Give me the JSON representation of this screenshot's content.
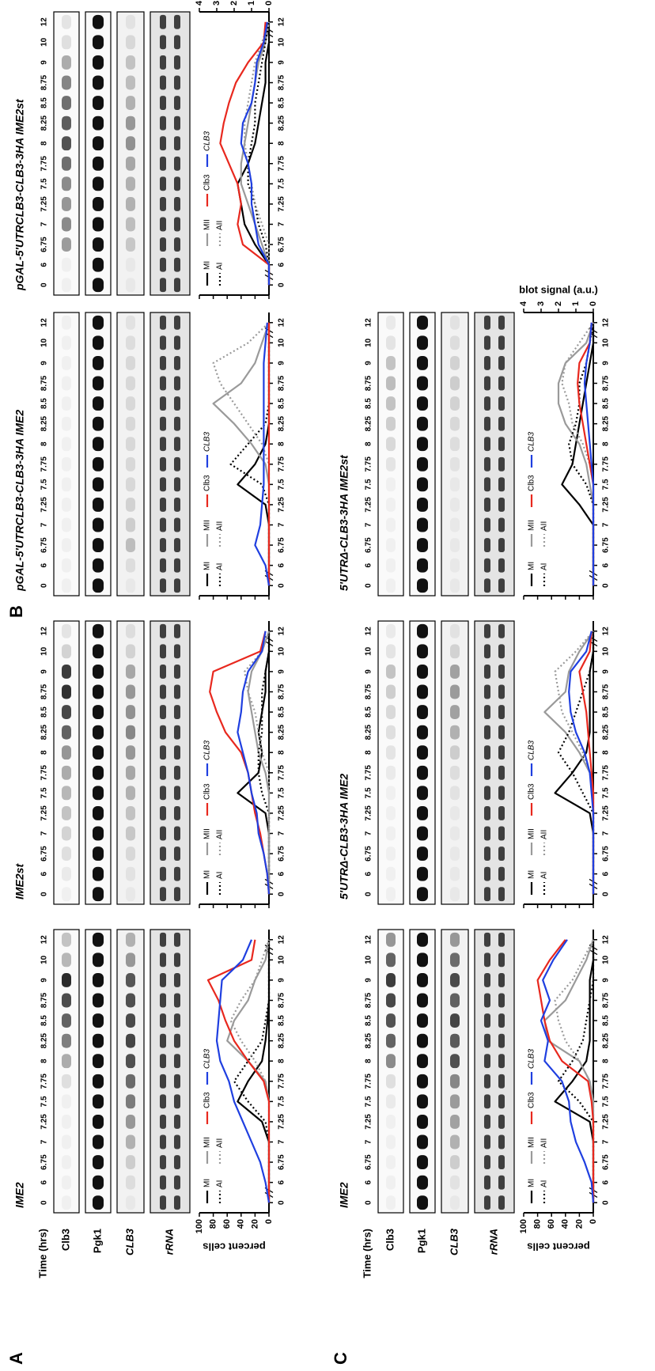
{
  "panel_labels": [
    "A",
    "B",
    "C"
  ],
  "row_header": {
    "time_label": "Time (hrs)",
    "blots": [
      "Clb3",
      "Pgk1",
      "CLB3",
      "rRNA"
    ]
  },
  "chart_data": [
    {
      "type": "line",
      "title": "IME2",
      "ylabel": "percent cells",
      "categories": [
        "0",
        "6",
        "6.75",
        "7",
        "7.25",
        "7.5",
        "7.75",
        "8",
        "8.25",
        "8.5",
        "8.75",
        "9",
        "10",
        "12"
      ],
      "ylim": [
        0,
        100
      ],
      "yticks": [
        0,
        20,
        40,
        60,
        80,
        100
      ],
      "y2lim": [
        0,
        4
      ],
      "series": [
        {
          "name": "MI",
          "color": "#000000",
          "line_style": "solid",
          "values": [
            0,
            0,
            0,
            0,
            10,
            45,
            30,
            10,
            5,
            2,
            0,
            0,
            0,
            0
          ]
        },
        {
          "name": "MII",
          "color": "#9a9a9a",
          "line_style": "solid",
          "values": [
            0,
            0,
            0,
            0,
            0,
            0,
            5,
            30,
            60,
            50,
            30,
            20,
            5,
            0
          ]
        },
        {
          "name": "AI",
          "color": "#000000",
          "line_style": "dotted",
          "values": [
            0,
            0,
            0,
            0,
            5,
            30,
            50,
            30,
            10,
            5,
            0,
            0,
            0,
            0
          ]
        },
        {
          "name": "AII",
          "color": "#9a9a9a",
          "line_style": "dotted",
          "values": [
            0,
            0,
            0,
            0,
            0,
            0,
            5,
            20,
            40,
            55,
            40,
            20,
            10,
            0
          ]
        },
        {
          "name": "Clb3",
          "color": "#e8281e",
          "line_style": "solid",
          "axis": "y2",
          "values": [
            0,
            0,
            0,
            0,
            0,
            0,
            0.3,
            1.2,
            2,
            2.5,
            2.9,
            3.5,
            1,
            0.8
          ]
        },
        {
          "name": "CLB3",
          "color": "#1f3fe0",
          "line_style": "solid",
          "axis": "y2",
          "values": [
            0,
            0.2,
            0.5,
            1,
            1.5,
            2,
            2.3,
            2.8,
            3,
            2.9,
            2.8,
            2.7,
            1.5,
            1
          ]
        }
      ]
    },
    {
      "type": "line",
      "title": "IME2st",
      "categories": [
        "0",
        "6",
        "6.75",
        "7",
        "7.25",
        "7.5",
        "7.75",
        "8",
        "8.25",
        "8.5",
        "8.75",
        "9",
        "10",
        "12"
      ],
      "ylim": [
        0,
        100
      ],
      "yticks": [
        0,
        20,
        40,
        60,
        80,
        100
      ],
      "y2lim": [
        0,
        4
      ],
      "series": [
        {
          "name": "MI",
          "color": "#000000",
          "line_style": "solid",
          "values": [
            0,
            0,
            0,
            0,
            5,
            45,
            15,
            10,
            15,
            10,
            5,
            5,
            0,
            0
          ]
        },
        {
          "name": "MII",
          "color": "#9a9a9a",
          "line_style": "solid",
          "values": [
            0,
            0,
            0,
            0,
            0,
            0,
            5,
            15,
            20,
            25,
            30,
            25,
            10,
            0
          ]
        },
        {
          "name": "AI",
          "color": "#000000",
          "line_style": "dotted",
          "values": [
            0,
            0,
            0,
            0,
            0,
            10,
            15,
            15,
            10,
            10,
            10,
            5,
            0,
            0
          ]
        },
        {
          "name": "AII",
          "color": "#9a9a9a",
          "line_style": "dotted",
          "values": [
            0,
            0,
            0,
            0,
            0,
            0,
            0,
            10,
            15,
            20,
            30,
            35,
            10,
            0
          ]
        },
        {
          "name": "Clb3",
          "color": "#e8281e",
          "line_style": "solid",
          "axis": "y2",
          "values": [
            0,
            0.1,
            0.3,
            0.5,
            0.8,
            1,
            1.2,
            1.6,
            2.5,
            3,
            3.4,
            3.2,
            0.5,
            0.2
          ]
        },
        {
          "name": "CLB3",
          "color": "#1f3fe0",
          "line_style": "solid",
          "axis": "y2",
          "values": [
            0,
            0.1,
            0.3,
            0.6,
            0.7,
            1,
            1.2,
            1.5,
            1.8,
            1.6,
            1.5,
            1.2,
            0.4,
            0.2
          ]
        }
      ]
    },
    {
      "type": "line",
      "title": "pGAL-5'UTRCLB3-CLB3-3HA IME2",
      "categories": [
        "0",
        "6",
        "6.75",
        "7",
        "7.25",
        "7.5",
        "7.75",
        "8",
        "8.25",
        "8.5",
        "8.75",
        "9",
        "10",
        "12"
      ],
      "ylim": [
        0,
        100
      ],
      "yticks": [
        0,
        20,
        40,
        60,
        80,
        100
      ],
      "y2lim": [
        0,
        4
      ],
      "series": [
        {
          "name": "MI",
          "color": "#000000",
          "line_style": "solid",
          "values": [
            0,
            0,
            0,
            0,
            5,
            45,
            20,
            5,
            0,
            0,
            0,
            0,
            0,
            0
          ]
        },
        {
          "name": "MII",
          "color": "#9a9a9a",
          "line_style": "solid",
          "values": [
            0,
            0,
            0,
            0,
            0,
            0,
            5,
            25,
            50,
            80,
            40,
            20,
            10,
            0
          ]
        },
        {
          "name": "AI",
          "color": "#000000",
          "line_style": "dotted",
          "values": [
            0,
            0,
            0,
            0,
            0,
            10,
            55,
            30,
            5,
            0,
            0,
            0,
            0,
            0
          ]
        },
        {
          "name": "AII",
          "color": "#9a9a9a",
          "line_style": "dotted",
          "values": [
            0,
            0,
            0,
            0,
            0,
            0,
            0,
            10,
            30,
            50,
            70,
            80,
            30,
            0
          ]
        },
        {
          "name": "Clb3",
          "color": "#e8281e",
          "line_style": "solid",
          "axis": "y2",
          "values": [
            0,
            0,
            0,
            0,
            0,
            0,
            0,
            0,
            0,
            0,
            0,
            0,
            0,
            0
          ]
        },
        {
          "name": "CLB3",
          "color": "#1f3fe0",
          "line_style": "solid",
          "axis": "y2",
          "values": [
            0,
            0.2,
            0.8,
            0.5,
            0.4,
            0.3,
            0.3,
            0.3,
            0.3,
            0.3,
            0.3,
            0.3,
            0.2,
            0.1
          ]
        }
      ]
    },
    {
      "type": "line",
      "title": "pGAL-5'UTRCLB3-CLB3-3HA IME2st",
      "y2label": "blot signal (a.u.)",
      "categories": [
        "0",
        "6",
        "6.75",
        "7",
        "7.25",
        "7.5",
        "7.75",
        "8",
        "8.25",
        "8.5",
        "8.75",
        "9",
        "10",
        "12"
      ],
      "ylim": [
        0,
        100
      ],
      "yticks": [
        0,
        20,
        40,
        60,
        80,
        100
      ],
      "y2lim": [
        0,
        4
      ],
      "y2ticks": [
        0,
        1,
        2,
        3,
        4
      ],
      "series": [
        {
          "name": "MI",
          "color": "#000000",
          "line_style": "solid",
          "values": [
            0,
            0,
            20,
            35,
            40,
            45,
            30,
            20,
            15,
            10,
            5,
            5,
            0,
            0
          ]
        },
        {
          "name": "MII",
          "color": "#9a9a9a",
          "line_style": "solid",
          "values": [
            0,
            0,
            10,
            20,
            30,
            40,
            40,
            35,
            30,
            25,
            20,
            15,
            5,
            0
          ]
        },
        {
          "name": "AI",
          "color": "#000000",
          "line_style": "dotted",
          "values": [
            0,
            0,
            5,
            15,
            20,
            30,
            30,
            25,
            20,
            20,
            15,
            10,
            5,
            0
          ]
        },
        {
          "name": "AII",
          "color": "#9a9a9a",
          "line_style": "dotted",
          "values": [
            0,
            0,
            0,
            10,
            20,
            25,
            30,
            35,
            35,
            30,
            25,
            20,
            10,
            0
          ]
        },
        {
          "name": "Clb3",
          "color": "#e8281e",
          "line_style": "solid",
          "axis": "y2",
          "values": [
            0,
            0,
            1.5,
            1.8,
            1.6,
            1.8,
            2.3,
            2.8,
            2.6,
            2.3,
            1.9,
            1.2,
            0.3,
            0.2
          ]
        },
        {
          "name": "CLB3",
          "color": "#1f3fe0",
          "line_style": "solid",
          "axis": "y2",
          "values": [
            0,
            0,
            0.6,
            0.8,
            1,
            1,
            1.2,
            1.6,
            1.5,
            1,
            0.8,
            0.7,
            0.3,
            0.1
          ]
        }
      ]
    },
    {
      "type": "line",
      "title": "IME2",
      "ylabel": "percent cells",
      "categories": [
        "0",
        "6",
        "6.75",
        "7",
        "7.25",
        "7.5",
        "7.75",
        "8",
        "8.25",
        "8.5",
        "8.75",
        "9",
        "10",
        "12"
      ],
      "ylim": [
        0,
        100
      ],
      "yticks": [
        0,
        20,
        40,
        60,
        80,
        100
      ],
      "y2lim": [
        0,
        4
      ],
      "series": [
        {
          "name": "MI",
          "color": "#000000",
          "line_style": "solid",
          "values": [
            0,
            0,
            0,
            0,
            5,
            55,
            30,
            10,
            5,
            5,
            5,
            5,
            0,
            0
          ]
        },
        {
          "name": "MII",
          "color": "#9a9a9a",
          "line_style": "solid",
          "values": [
            0,
            0,
            0,
            0,
            0,
            0,
            5,
            20,
            65,
            70,
            40,
            25,
            10,
            0
          ]
        },
        {
          "name": "AI",
          "color": "#000000",
          "line_style": "dotted",
          "values": [
            0,
            0,
            0,
            0,
            0,
            20,
            50,
            30,
            15,
            10,
            5,
            0,
            0,
            0
          ]
        },
        {
          "name": "AII",
          "color": "#9a9a9a",
          "line_style": "dotted",
          "values": [
            0,
            0,
            0,
            0,
            0,
            0,
            5,
            20,
            40,
            50,
            55,
            30,
            15,
            0
          ]
        },
        {
          "name": "Clb3",
          "color": "#e8281e",
          "line_style": "solid",
          "axis": "y2",
          "values": [
            0,
            0,
            0,
            0,
            0,
            0.1,
            0.3,
            1.8,
            2.5,
            2.8,
            3,
            3.2,
            2.5,
            1.6
          ]
        },
        {
          "name": "CLB3",
          "color": "#1f3fe0",
          "line_style": "solid",
          "axis": "y2",
          "values": [
            0,
            0.1,
            0.5,
            1,
            1.3,
            1.4,
            1.8,
            2.8,
            2.6,
            3,
            2.5,
            2.9,
            2.3,
            1.5
          ]
        }
      ]
    },
    {
      "type": "line",
      "title": "5'UTRΔ-CLB3-3HA IME2",
      "categories": [
        "0",
        "6",
        "6.75",
        "7",
        "7.25",
        "7.5",
        "7.75",
        "8",
        "8.25",
        "8.5",
        "8.75",
        "9",
        "10",
        "12"
      ],
      "ylim": [
        0,
        100
      ],
      "yticks": [
        0,
        20,
        40,
        60,
        80,
        100
      ],
      "y2lim": [
        0,
        4
      ],
      "series": [
        {
          "name": "MI",
          "color": "#000000",
          "line_style": "solid",
          "values": [
            0,
            0,
            0,
            0,
            5,
            55,
            30,
            10,
            5,
            5,
            5,
            5,
            0,
            0
          ]
        },
        {
          "name": "MII",
          "color": "#9a9a9a",
          "line_style": "solid",
          "values": [
            0,
            0,
            0,
            0,
            0,
            0,
            5,
            20,
            40,
            70,
            40,
            35,
            20,
            0
          ]
        },
        {
          "name": "AI",
          "color": "#000000",
          "line_style": "dotted",
          "values": [
            0,
            0,
            0,
            0,
            0,
            15,
            30,
            50,
            35,
            25,
            15,
            5,
            0,
            0
          ]
        },
        {
          "name": "AII",
          "color": "#9a9a9a",
          "line_style": "dotted",
          "values": [
            0,
            0,
            0,
            0,
            0,
            0,
            5,
            15,
            30,
            45,
            50,
            55,
            25,
            0
          ]
        },
        {
          "name": "Clb3",
          "color": "#e8281e",
          "line_style": "solid",
          "axis": "y2",
          "values": [
            0,
            0,
            0,
            0,
            0,
            0,
            0.1,
            0.2,
            0.3,
            0.4,
            0.6,
            0.8,
            0.2,
            0.1
          ]
        },
        {
          "name": "CLB3",
          "color": "#1f3fe0",
          "line_style": "solid",
          "axis": "y2",
          "values": [
            0,
            0,
            0,
            0,
            0,
            0.1,
            0.2,
            0.5,
            1,
            1.3,
            1.4,
            1.3,
            0.4,
            0.1
          ]
        }
      ]
    },
    {
      "type": "line",
      "title": "5'UTRΔ-CLB3-3HA IME2st",
      "y2label": "blot signal (a.u.)",
      "categories": [
        "0",
        "6",
        "6.75",
        "7",
        "7.25",
        "7.5",
        "7.75",
        "8",
        "8.25",
        "8.5",
        "8.75",
        "9",
        "10",
        "12"
      ],
      "ylim": [
        0,
        100
      ],
      "yticks": [
        0,
        20,
        40,
        60,
        80,
        100
      ],
      "y2lim": [
        0,
        4
      ],
      "y2ticks": [
        0,
        1,
        2,
        3,
        4
      ],
      "series": [
        {
          "name": "MI",
          "color": "#000000",
          "line_style": "solid",
          "values": [
            0,
            0,
            0,
            0,
            20,
            45,
            30,
            25,
            20,
            15,
            10,
            5,
            0,
            0
          ]
        },
        {
          "name": "MII",
          "color": "#9a9a9a",
          "line_style": "solid",
          "values": [
            0,
            0,
            0,
            0,
            0,
            5,
            10,
            20,
            40,
            50,
            50,
            40,
            10,
            0
          ]
        },
        {
          "name": "AI",
          "color": "#000000",
          "line_style": "dotted",
          "values": [
            0,
            0,
            0,
            0,
            0,
            10,
            30,
            35,
            25,
            20,
            20,
            10,
            5,
            0
          ]
        },
        {
          "name": "AII",
          "color": "#9a9a9a",
          "line_style": "dotted",
          "values": [
            0,
            0,
            0,
            0,
            0,
            0,
            5,
            15,
            30,
            35,
            45,
            40,
            20,
            0
          ]
        },
        {
          "name": "Clb3",
          "color": "#e8281e",
          "line_style": "solid",
          "axis": "y2",
          "values": [
            0,
            0,
            0,
            0,
            0,
            0,
            0.2,
            0.4,
            0.6,
            0.8,
            0.9,
            0.8,
            0.2,
            0.1
          ]
        },
        {
          "name": "CLB3",
          "color": "#1f3fe0",
          "line_style": "solid",
          "axis": "y2",
          "values": [
            0,
            0,
            0,
            0,
            0,
            0,
            0.1,
            0.2,
            0.3,
            0.4,
            0.5,
            0.4,
            0.2,
            0.1
          ]
        }
      ]
    }
  ]
}
